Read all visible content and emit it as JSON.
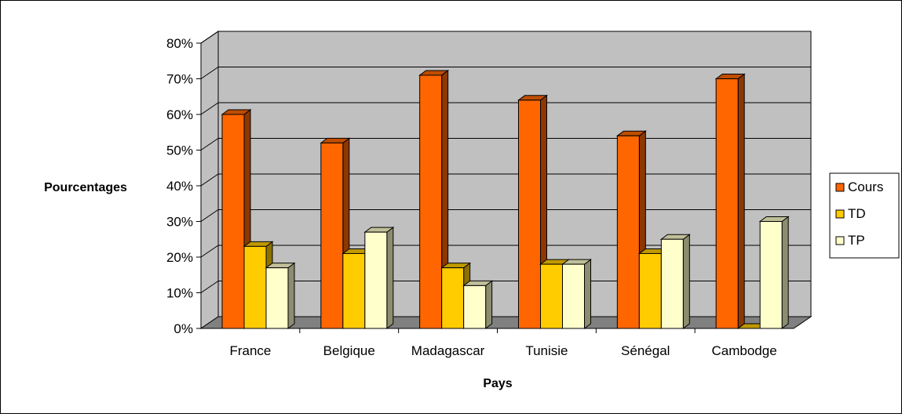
{
  "chart_data": {
    "type": "bar",
    "title": "",
    "xlabel": "Pays",
    "ylabel": "Pourcentages",
    "categories": [
      "France",
      "Belgique",
      "Madagascar",
      "Tunisie",
      "Sénégal",
      "Cambodge"
    ],
    "series": [
      {
        "name": "Cours",
        "values": [
          60,
          52,
          71,
          64,
          54,
          70
        ]
      },
      {
        "name": "TD",
        "values": [
          23,
          21,
          17,
          18,
          21,
          0
        ]
      },
      {
        "name": "TP",
        "values": [
          17,
          27,
          12,
          18,
          25,
          30
        ]
      }
    ],
    "ylim": [
      0,
      80
    ],
    "yticks": [
      "0%",
      "10%",
      "20%",
      "30%",
      "40%",
      "50%",
      "60%",
      "70%",
      "80%"
    ],
    "grid": true,
    "legend": "right",
    "three_d": true,
    "colors": {
      "series": [
        "#FF6600",
        "#FFCC00",
        "#FFFFCC"
      ],
      "walls": "#C0C0C0",
      "floor": "#808080"
    }
  }
}
